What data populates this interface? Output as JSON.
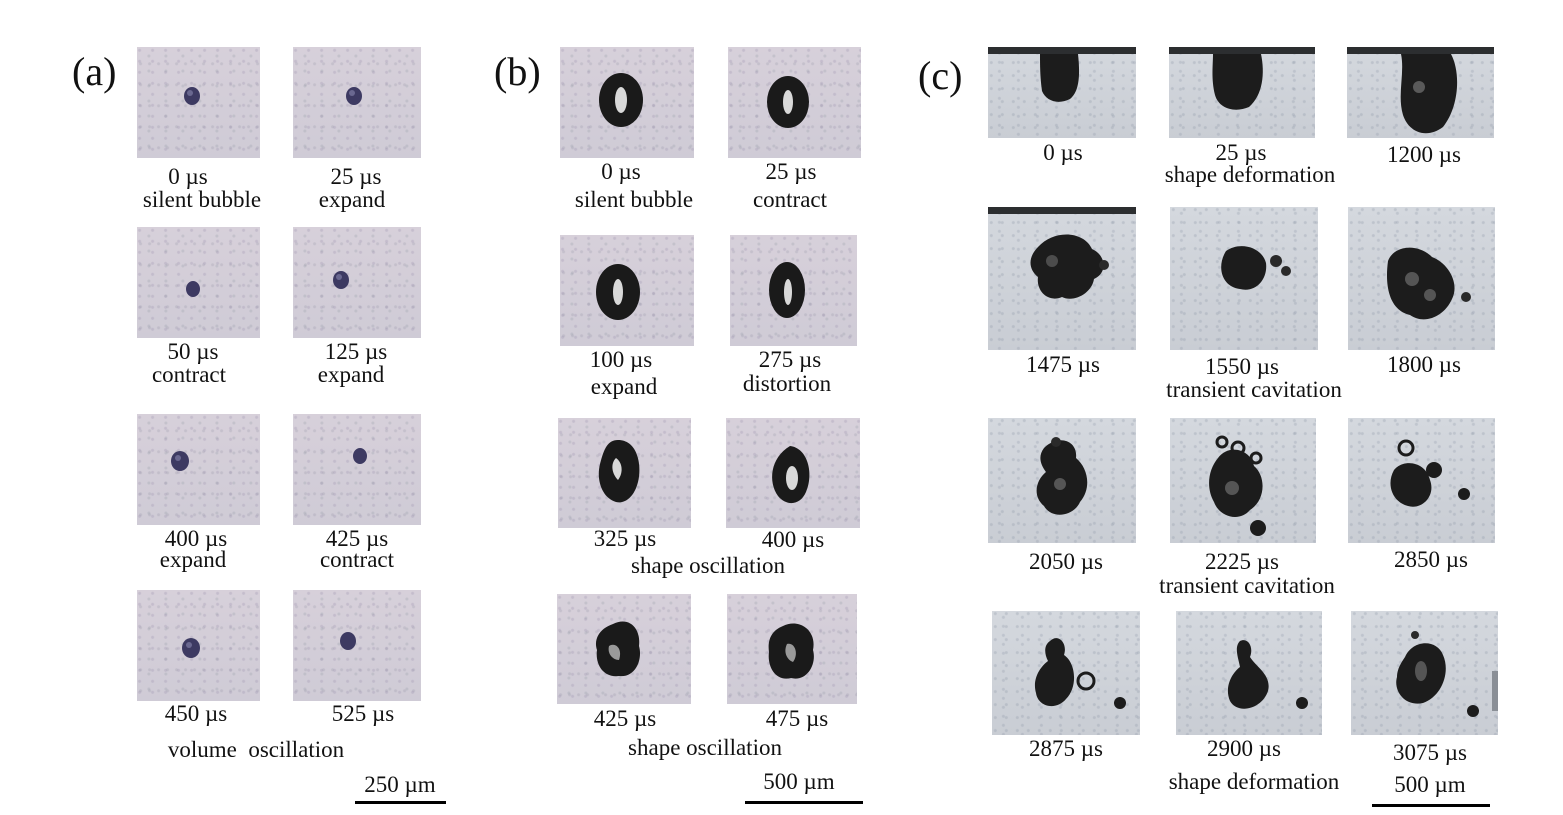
{
  "panels": {
    "a": {
      "label": "(a)",
      "captions": {
        "f1_time": "0 µs",
        "f1_phase": "silent bubble",
        "f2_time": "25 µs",
        "f2_phase": "expand",
        "f3_time": "50 µs",
        "f3_phase": "contract",
        "f4_time": "125 µs",
        "f4_phase": "expand",
        "f5_time": "400 µs",
        "f5_phase": "expand",
        "f6_time": "425 µs",
        "f6_phase": "contract",
        "f7_time": "450 µs",
        "f8_time": "525 µs",
        "row4_phase": "volume  oscillation"
      },
      "scale": "250 µm"
    },
    "b": {
      "label": "(b)",
      "captions": {
        "f1_time": "0 µs",
        "f1_phase": "silent bubble",
        "f2_time": "25 µs",
        "f2_phase": "contract",
        "f3_time": "100 µs",
        "f3_phase": "expand",
        "f4_time": "275 µs",
        "f4_phase": "distortion",
        "f5_time": "325 µs",
        "f6_time": "400 µs",
        "row3_phase": "shape oscillation",
        "f7_time": "425 µs",
        "f8_time": "475 µs",
        "row4_phase": "shape oscillation"
      },
      "scale": "500 µm"
    },
    "c": {
      "label": "(c)",
      "captions": {
        "f1_time": "0 µs",
        "f2_time": "25 µs",
        "f3_time": "1200 µs",
        "row1_phase": "shape deformation",
        "f4_time": "1475 µs",
        "f5_time": "1550 µs",
        "f6_time": "1800 µs",
        "row2_phase": "transient cavitation",
        "f7_time": "2050 µs",
        "f8_time": "2225 µs",
        "f9_time": "2850 µs",
        "row3_phase": "transient cavitation",
        "f10_time": "2875 µs",
        "f11_time": "2900 µs",
        "f12_time": "3075 µs",
        "row4_phase": "shape deformation"
      },
      "scale": "500 µm"
    }
  }
}
